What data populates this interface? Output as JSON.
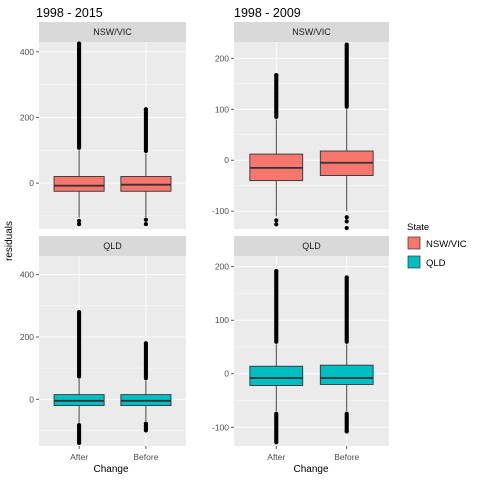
{
  "chart_data": {
    "type": "boxplot",
    "xlabel": "Change",
    "ylabel": "residuals",
    "categories": [
      "After",
      "Before"
    ],
    "legend": {
      "title": "State",
      "position": "right",
      "items": [
        {
          "label": "NSW/VIC",
          "color": "#F8766D"
        },
        {
          "label": "QLD",
          "color": "#00BFC4"
        }
      ]
    },
    "colors": {
      "panel_bg": "#EBEBEB",
      "grid": "#FFFFFF",
      "strip_bg": "#D9D9D9",
      "box_outline": "#333333"
    },
    "columns": [
      {
        "title": "1998 - 2015"
      },
      {
        "title": "1998 - 2009"
      }
    ],
    "panels": [
      {
        "strip": "NSW/VIC",
        "column": 0,
        "row": 0,
        "fill": "#F8766D",
        "ylim": [
          -140,
          430
        ],
        "yticks": [
          0,
          200,
          400
        ],
        "boxes": [
          {
            "category": "After",
            "q1": -25,
            "median": -8,
            "q3": 20,
            "whisker_low": -105,
            "whisker_high": 100,
            "outliers_low": [
              -115,
              -125
            ],
            "outliers_high_to": 425
          },
          {
            "category": "Before",
            "q1": -25,
            "median": -5,
            "q3": 20,
            "whisker_low": -105,
            "whisker_high": 90,
            "outliers_low": [
              -112,
              -125
            ],
            "outliers_high_to": 225
          }
        ]
      },
      {
        "strip": "NSW/VIC",
        "column": 1,
        "row": 0,
        "fill": "#F8766D",
        "ylim": [
          -135,
          232
        ],
        "yticks": [
          -100,
          0,
          100,
          200
        ],
        "boxes": [
          {
            "category": "After",
            "q1": -40,
            "median": -15,
            "q3": 12,
            "whisker_low": -110,
            "whisker_high": 80,
            "outliers_low": [
              -118,
              -126
            ],
            "outliers_high_to": 167
          },
          {
            "category": "Before",
            "q1": -30,
            "median": -5,
            "q3": 18,
            "whisker_low": -100,
            "whisker_high": 100,
            "outliers_low": [
              -112,
              -120,
              -133
            ],
            "outliers_high_to": 227
          }
        ]
      },
      {
        "strip": "QLD",
        "column": 0,
        "row": 1,
        "fill": "#00BFC4",
        "ylim": [
          -150,
          460
        ],
        "yticks": [
          0,
          200,
          400
        ],
        "boxes": [
          {
            "category": "After",
            "q1": -20,
            "median": -5,
            "q3": 15,
            "whisker_low": -75,
            "whisker_high": 65,
            "outliers_low_to": -140,
            "outliers_high_to": 280
          },
          {
            "category": "Before",
            "q1": -20,
            "median": -5,
            "q3": 15,
            "whisker_low": -70,
            "whisker_high": 60,
            "outliers_low_to": -100,
            "outliers_high_to": 180
          }
        ]
      },
      {
        "strip": "QLD",
        "column": 1,
        "row": 1,
        "fill": "#00BFC4",
        "ylim": [
          -135,
          220
        ],
        "yticks": [
          -100,
          0,
          100,
          200
        ],
        "boxes": [
          {
            "category": "After",
            "q1": -22,
            "median": -8,
            "q3": 14,
            "whisker_low": -70,
            "whisker_high": 55,
            "outliers_low_to": -128,
            "outliers_high_to": 192
          },
          {
            "category": "Before",
            "q1": -20,
            "median": -8,
            "q3": 16,
            "whisker_low": -70,
            "whisker_high": 55,
            "outliers_low_to": -108,
            "outliers_high_to": 180
          }
        ]
      }
    ]
  }
}
